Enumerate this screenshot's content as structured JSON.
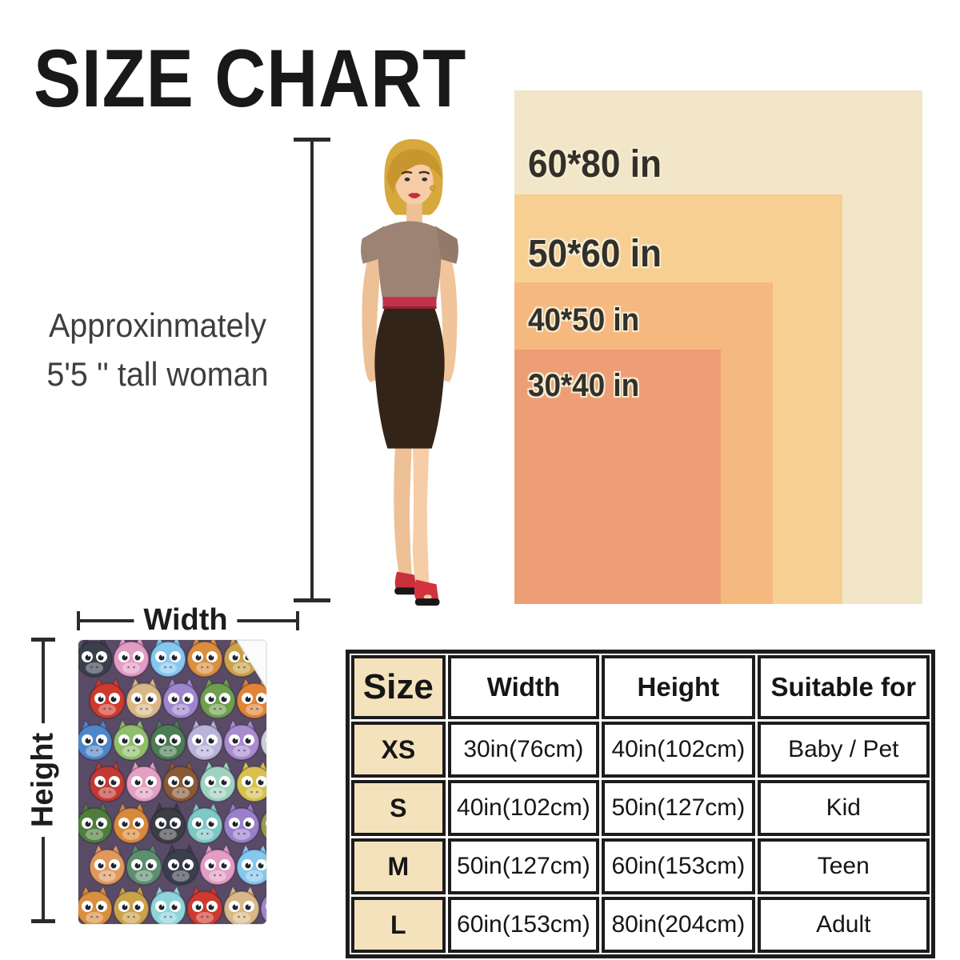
{
  "title": "SIZE CHART",
  "model_note": {
    "line1": "Approxinmately",
    "line2": "5'5 '' tall woman"
  },
  "size_rects": [
    {
      "label": "60*80 in",
      "color": "#f2e6c8"
    },
    {
      "label": "50*60 in",
      "color": "#f8cf93"
    },
    {
      "label": "40*50 in",
      "color": "#f5b87f"
    },
    {
      "label": "30*40 in",
      "color": "#ee9e76"
    }
  ],
  "measure": {
    "width_label": "Width",
    "height_label": "Height"
  },
  "table": {
    "headers": {
      "size": "Size",
      "width": "Width",
      "height": "Height",
      "suitable": "Suitable for"
    },
    "rows": [
      {
        "size": "XS",
        "width": "30in(76cm)",
        "height": "40in(102cm)",
        "suitable": "Baby / Pet"
      },
      {
        "size": "S",
        "width": "40in(102cm)",
        "height": "50in(127cm)",
        "suitable": "Kid"
      },
      {
        "size": "M",
        "width": "50in(127cm)",
        "height": "60in(153cm)",
        "suitable": "Teen"
      },
      {
        "size": "L",
        "width": "60in(153cm)",
        "height": "80in(204cm)",
        "suitable": "Adult"
      }
    ]
  },
  "blanket": {
    "description": "colorful cartoon baby dragons print blanket with folded corner",
    "background": "#594a66",
    "fold_color": "#fbfbfb",
    "dragon_colors": [
      "#3a3f4d",
      "#e39cc5",
      "#85c7ee",
      "#d98f3f",
      "#caa24a",
      "#8fd4da",
      "#cf3a2e",
      "#d9b887",
      "#9f86cc",
      "#6f9e4e",
      "#e08436",
      "#4f86c9",
      "#8fbf6a",
      "#4a7d52",
      "#b8b3d8",
      "#a98bd0",
      "#c9d0dc",
      "#c23a33",
      "#e3a0c0",
      "#8a5a36",
      "#9ed3c0",
      "#d8c14e",
      "#4e7d3e",
      "#d9893a",
      "#3c3c44",
      "#7fc8c4",
      "#9a7fc9",
      "#96a04c",
      "#e0995c",
      "#5b8f6e"
    ]
  }
}
